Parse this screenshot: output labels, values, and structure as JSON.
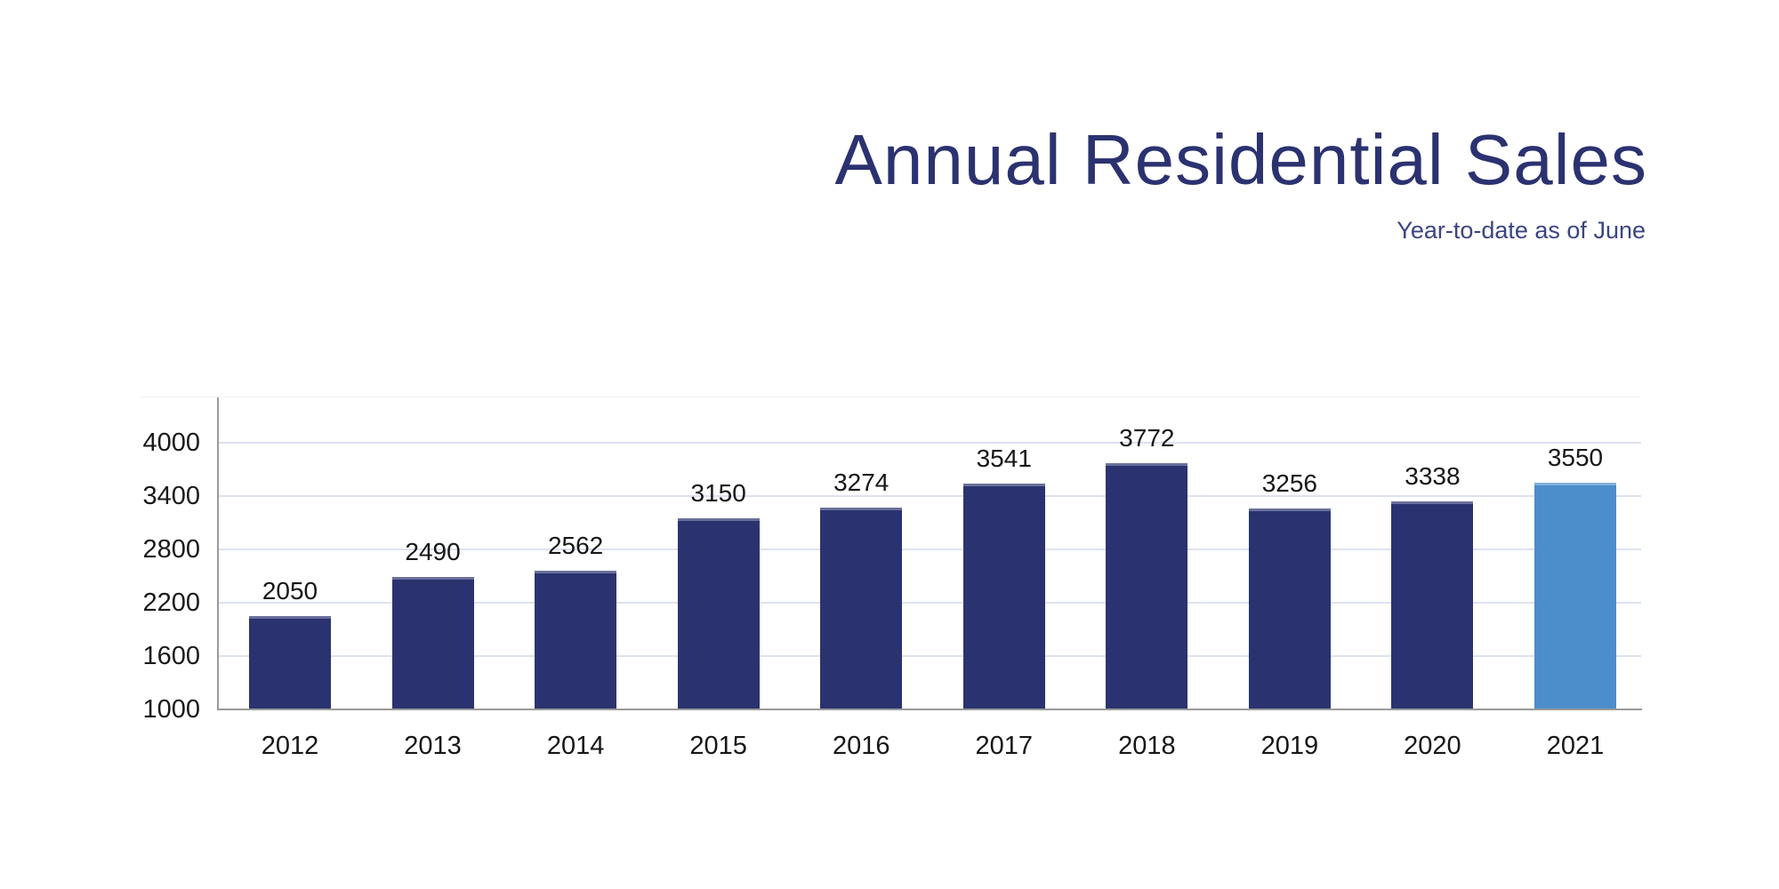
{
  "header": {
    "title": "Annual Residential Sales",
    "subtitle": "Year-to-date as of June"
  },
  "colors": {
    "title_text": "#2B3270",
    "subtitle_text": "#3A4580",
    "bar_default": "#2A3370",
    "bar_highlight": "#4C8DCB",
    "gridline": "#DCE2EE",
    "axis_line": "#9A9A9A",
    "tick_text": "#1A1A1A",
    "background": "#FFFFFF"
  },
  "chart_data": {
    "type": "bar",
    "title": "Annual Residential Sales",
    "subtitle": "Year-to-date as of June",
    "categories": [
      "2012",
      "2013",
      "2014",
      "2015",
      "2016",
      "2017",
      "2018",
      "2019",
      "2020",
      "2021"
    ],
    "values": [
      2050,
      2490,
      2562,
      3150,
      3274,
      3541,
      3772,
      3256,
      3338,
      3550
    ],
    "highlight_index": 9,
    "highlight_category": "2021",
    "value_labels_shown": true,
    "xlabel": "",
    "ylabel": "",
    "yticks": [
      1000,
      1600,
      2200,
      2800,
      3400,
      4000
    ],
    "ylim": [
      1000,
      4510
    ],
    "grid": "horizontal",
    "legend": "none"
  }
}
